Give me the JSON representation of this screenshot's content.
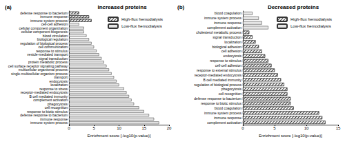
{
  "chart_data": [
    {
      "type": "bar",
      "panel": "(a)",
      "title": "Increased proteins",
      "orientation": "horizontal",
      "x_label": "Enrichment score [-log10(p-value)]",
      "xlim": [
        0,
        20
      ],
      "xticks": [
        0,
        5,
        10,
        15,
        20
      ],
      "legend": "upper right",
      "grid": false,
      "categories": [
        "defense response to bacterium",
        "immune response",
        "immune system process",
        "cell-cell adhesion",
        "cellular component organization",
        "cellular component biogenesis",
        "blood circulation",
        "biological regulation",
        "regulation of biological process",
        "cell communication",
        "response to stimulus",
        "vesicle-mediated transport",
        "signal transduction",
        "protein metabolic process",
        "cell surface receptor signaling pathway",
        "multicellular organismal process",
        "single-multicellular organism process",
        "transport",
        "endocytosis",
        "localization",
        "response to stress",
        "receptor-mediated endocytosis",
        "B cell mediated immunity",
        "complement activation",
        "phagocytosis",
        "cell recognition",
        "response to biotic stimulus",
        "defense response to bacterium",
        "immune response",
        "immune system process"
      ],
      "series": [
        {
          "name": "High-flux hemodialysis",
          "color": "#ffffff",
          "marker": "hatch",
          "values": [
            2,
            4,
            4.5,
            null,
            null,
            null,
            null,
            null,
            null,
            null,
            null,
            null,
            null,
            null,
            null,
            null,
            null,
            null,
            null,
            null,
            null,
            null,
            null,
            null,
            null,
            null,
            null,
            null,
            null,
            null
          ]
        },
        {
          "name": "Low-flux hemodialysis",
          "color": "#e6e6e6",
          "marker": "solid",
          "values": [
            null,
            null,
            null,
            2,
            3,
            3,
            3.5,
            4,
            4.5,
            5,
            5.5,
            6,
            6.5,
            7,
            7.5,
            8,
            8.5,
            9,
            9.5,
            10,
            11,
            11.5,
            12,
            12.5,
            13,
            14,
            15,
            16,
            17,
            18
          ]
        }
      ]
    },
    {
      "type": "bar",
      "panel": "(b)",
      "title": "Decreased proteins",
      "orientation": "horizontal",
      "x_label": "Enrichment score [-log10(p-value)]",
      "xlim": [
        0,
        15
      ],
      "xticks": [
        0,
        5,
        10,
        15
      ],
      "legend": "upper right",
      "grid": false,
      "categories": [
        "blood coagulation",
        "immune system process",
        "immune response",
        "complement activation",
        "cholesterol metabolic process",
        "signal transduction",
        "localization",
        "biological adhesion",
        "cell adhesion",
        "endocytosis",
        "response to stimulus",
        "cell-cell adhesion",
        "response to external stimulus",
        "receptor-mediated endocytosis",
        "B cell mediated immunity",
        "regulation of biological process",
        "phagocytosis",
        "cell recognition",
        "defense response to bacterium",
        "response to biotic stimulus",
        "blood coagulation",
        "immune system process",
        "immune response",
        "complement activation"
      ],
      "series": [
        {
          "name": "High-flux hemodialysis",
          "color": "#ffffff",
          "marker": "hatch",
          "values": [
            null,
            null,
            null,
            null,
            1,
            1.5,
            2,
            2.5,
            3,
            3.5,
            4,
            4.5,
            5,
            5.5,
            6,
            6.5,
            7,
            7,
            7.5,
            7.5,
            8,
            12,
            12.5,
            13
          ]
        },
        {
          "name": "Low-flux hemodialysis",
          "color": "#e6e6e6",
          "marker": "solid",
          "values": [
            1.5,
            2.5,
            3,
            4,
            null,
            null,
            null,
            null,
            null,
            null,
            null,
            null,
            null,
            null,
            null,
            null,
            null,
            null,
            null,
            null,
            null,
            null,
            null,
            null
          ]
        }
      ]
    }
  ]
}
